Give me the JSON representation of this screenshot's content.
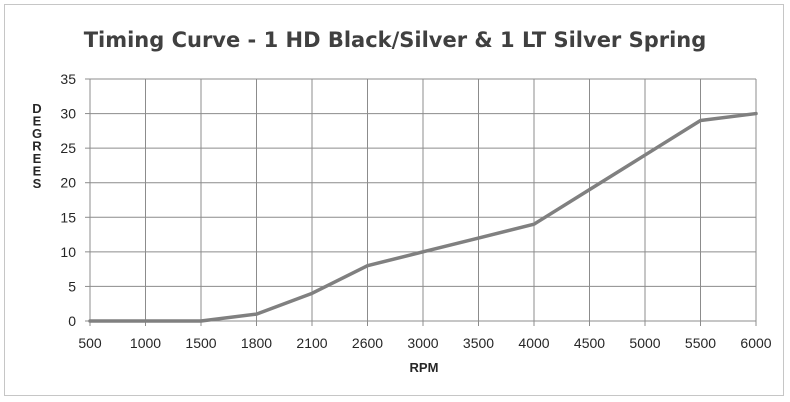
{
  "chart_data": {
    "type": "line",
    "title": "Timing Curve - 1 HD Black/Silver & 1 LT Silver Spring",
    "xlabel": "RPM",
    "ylabel": "DEGREES",
    "categories": [
      "500",
      "1000",
      "1500",
      "1800",
      "2100",
      "2600",
      "3000",
      "3500",
      "4000",
      "4500",
      "5000",
      "5500",
      "6000"
    ],
    "series": [
      {
        "values": [
          0,
          0,
          0,
          1,
          4,
          8,
          10,
          12,
          14,
          19,
          24,
          29,
          30
        ]
      }
    ],
    "ylim": [
      0,
      35
    ],
    "yticks": [
      0,
      5,
      10,
      15,
      20,
      25,
      30,
      35
    ],
    "grid": true,
    "legend": "none",
    "line_color": "#808080"
  }
}
